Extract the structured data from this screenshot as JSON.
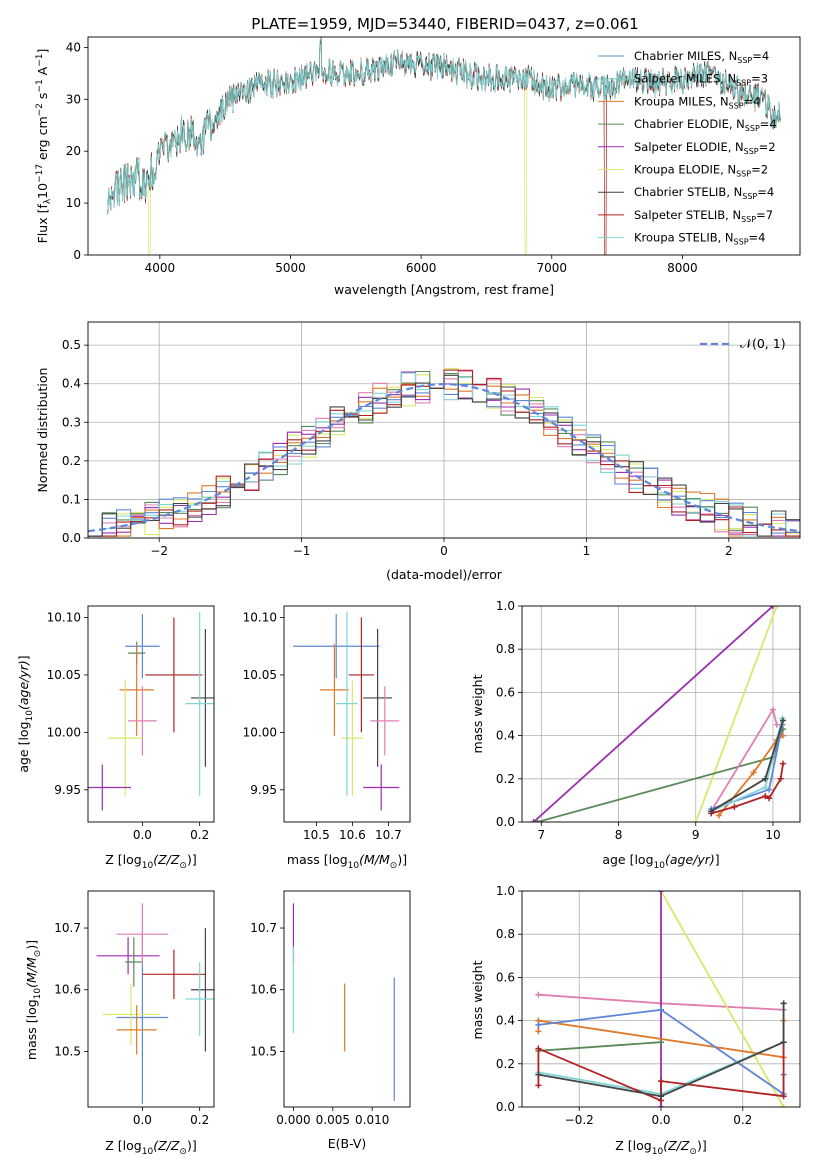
{
  "figure": {
    "title": "PLATE=1959, MJD=53440, FIBERID=0437, z=0.061"
  },
  "colors": {
    "chabrier_miles": "#5e8fc5",
    "salpeter_miles": "#6ec6c0",
    "kroupa_miles": "#e07a2a",
    "chabrier_elodie": "#5a8a5a",
    "salpeter_elodie": "#9b2fb0",
    "kroupa_elodie": "#d8e86a",
    "chabrier_stelib": "#444444",
    "salpeter_stelib": "#b22222",
    "kroupa_stelib": "#7fd6d6",
    "pink": "#e07fb0",
    "blue": "#5f86d8",
    "normal_curve": "#5f86d8"
  },
  "chart_data": [
    {
      "id": "spectrum",
      "type": "line",
      "xlabel": "wavelength [Angstrom, rest frame]",
      "ylabel": "Flux [f",
      "ylabel_parts": {
        "a": "Flux [f",
        "lambda": "λ",
        "b": "10",
        "exp1": "−17",
        "c": " erg cm",
        "exp2": "−2",
        "d": " s",
        "exp3": "−1",
        "e": " A",
        "exp4": "−1",
        "f": "]"
      },
      "xlim": [
        3450,
        8900
      ],
      "ylim": [
        0,
        42
      ],
      "xticks": [
        4000,
        5000,
        6000,
        7000,
        8000
      ],
      "yticks": [
        0,
        10,
        20,
        30,
        40
      ],
      "continuum": {
        "x": [
          3600,
          3700,
          3800,
          3900,
          4000,
          4100,
          4200,
          4300,
          4400,
          4500,
          4600,
          4800,
          5000,
          5200,
          5400,
          5600,
          5800,
          6000,
          6200,
          6400,
          6600,
          6800,
          7000,
          7200,
          7400,
          7600,
          7800,
          8000,
          8200,
          8400,
          8600,
          8700
        ],
        "y": [
          12,
          13,
          15,
          14,
          19,
          21,
          24,
          22,
          25,
          29,
          31,
          33,
          33.5,
          35,
          35,
          35.5,
          37,
          36.5,
          36,
          34.5,
          34,
          34,
          32,
          33,
          32,
          34,
          33,
          34,
          35,
          32,
          30,
          27
        ]
      },
      "legend": [
        {
          "label": "Chabrier MILES, N",
          "sub": "SSP",
          "val": "=4",
          "color": "chabrier_miles"
        },
        {
          "label": "Salpeter MILES, N",
          "sub": "SSP",
          "val": "=3",
          "color": "salpeter_miles"
        },
        {
          "label": "Kroupa MILES, N",
          "sub": "SSP",
          "val": "=4",
          "color": "kroupa_miles"
        },
        {
          "label": "Chabrier ELODIE, N",
          "sub": "SSP",
          "val": "=4",
          "color": "chabrier_elodie"
        },
        {
          "label": "Salpeter ELODIE, N",
          "sub": "SSP",
          "val": "=2",
          "color": "salpeter_elodie"
        },
        {
          "label": "Kroupa ELODIE, N",
          "sub": "SSP",
          "val": "=2",
          "color": "kroupa_elodie"
        },
        {
          "label": "Chabrier STELIB, N",
          "sub": "SSP",
          "val": "=4",
          "color": "chabrier_stelib"
        },
        {
          "label": "Salpeter STELIB, N",
          "sub": "SSP",
          "val": "=7",
          "color": "salpeter_stelib"
        },
        {
          "label": "Kroupa STELIB, N",
          "sub": "SSP",
          "val": "=4",
          "color": "kroupa_stelib"
        }
      ]
    },
    {
      "id": "residuals",
      "type": "bar",
      "xlabel": "(data-model)/error",
      "ylabel": "Normed distribution",
      "xlim": [
        -2.5,
        2.5
      ],
      "ylim": [
        0,
        0.56
      ],
      "xticks": [
        -2,
        -1,
        0,
        1,
        2
      ],
      "yticks": [
        0.0,
        0.1,
        0.2,
        0.3,
        0.4,
        0.5
      ],
      "grid": true,
      "legend": [
        {
          "label": "𝒩(0, 1)",
          "style": "dashed",
          "color": "normal_curve"
        }
      ],
      "bin_width": 0.1
    },
    {
      "id": "age_vs_Z",
      "type": "scatter",
      "xlabel": "Z [log",
      "ylabel": "age  [log",
      "xlim": [
        -0.19,
        0.25
      ],
      "ylim": [
        9.922,
        10.11
      ],
      "xticks": [
        0.0,
        0.2
      ],
      "yticks": [
        9.95,
        10.0,
        10.05,
        10.1
      ],
      "points": [
        {
          "x": 0.0,
          "y": 10.075,
          "xerr": 0.06,
          "yerr": 0.028,
          "color": "blue"
        },
        {
          "x": -0.02,
          "y": 10.069,
          "xerr": 0.03,
          "yerr": 0.01,
          "color": "chabrier_elodie"
        },
        {
          "x": -0.02,
          "y": 10.037,
          "xerr": 0.06,
          "yerr": 0.04,
          "color": "kroupa_miles"
        },
        {
          "x": 0.0,
          "y": 10.01,
          "xerr": 0.05,
          "yerr": 0.03,
          "color": "pink"
        },
        {
          "x": -0.06,
          "y": 9.995,
          "xerr": 0.06,
          "yerr": 0.05,
          "color": "kroupa_elodie"
        },
        {
          "x": -0.14,
          "y": 9.952,
          "xerr": 0.1,
          "yerr": 0.02,
          "color": "salpeter_elodie"
        },
        {
          "x": 0.11,
          "y": 10.05,
          "xerr": 0.1,
          "yerr": 0.05,
          "color": "salpeter_stelib"
        },
        {
          "x": 0.22,
          "y": 10.03,
          "xerr": 0.05,
          "yerr": 0.06,
          "color": "chabrier_stelib"
        },
        {
          "x": 0.2,
          "y": 10.025,
          "xerr": 0.05,
          "yerr": 0.08,
          "color": "kroupa_stelib"
        }
      ]
    },
    {
      "id": "age_vs_mass",
      "type": "scatter",
      "xlabel": "mass [log",
      "xlim": [
        10.41,
        10.76
      ],
      "ylim": [
        9.922,
        10.11
      ],
      "xticks": [
        10.5,
        10.6,
        10.7
      ],
      "yticks": [
        9.95,
        10.0,
        10.05,
        10.1
      ],
      "points": [
        {
          "x": 10.555,
          "y": 10.075,
          "xerr": 0.12,
          "yerr": 0.028,
          "color": "blue"
        },
        {
          "x": 10.55,
          "y": 10.037,
          "xerr": 0.04,
          "yerr": 0.04,
          "color": "kroupa_miles"
        },
        {
          "x": 10.6,
          "y": 9.995,
          "xerr": 0.03,
          "yerr": 0.05,
          "color": "kroupa_elodie"
        },
        {
          "x": 10.625,
          "y": 10.05,
          "xerr": 0.035,
          "yerr": 0.05,
          "color": "salpeter_stelib"
        },
        {
          "x": 10.67,
          "y": 10.03,
          "xerr": 0.04,
          "yerr": 0.06,
          "color": "chabrier_stelib"
        },
        {
          "x": 10.69,
          "y": 10.01,
          "xerr": 0.04,
          "yerr": 0.03,
          "color": "pink"
        },
        {
          "x": 10.68,
          "y": 9.952,
          "xerr": 0.05,
          "yerr": 0.02,
          "color": "salpeter_elodie"
        },
        {
          "x": 10.585,
          "y": 10.025,
          "xerr": 0.03,
          "yerr": 0.08,
          "color": "kroupa_stelib"
        }
      ]
    },
    {
      "id": "weight_vs_age",
      "type": "line",
      "xlabel": "age  [log",
      "ylabel": "mass weight",
      "xlim": [
        6.75,
        10.35
      ],
      "ylim": [
        0,
        1.0
      ],
      "xticks": [
        7,
        8,
        9,
        10
      ],
      "yticks": [
        0.0,
        0.2,
        0.4,
        0.6,
        0.8,
        1.0
      ],
      "grid": true,
      "series": [
        {
          "color": "salpeter_elodie",
          "x": [
            6.9,
            10.0
          ],
          "y": [
            0.0,
            1.0
          ]
        },
        {
          "color": "kroupa_elodie",
          "x": [
            9.0,
            10.05
          ],
          "y": [
            0.0,
            1.0
          ]
        },
        {
          "color": "chabrier_elodie",
          "x": [
            6.95,
            10.0,
            10.13
          ],
          "y": [
            0.0,
            0.3,
            0.43
          ]
        },
        {
          "color": "pink",
          "x": [
            9.2,
            10.0,
            10.05
          ],
          "y": [
            0.05,
            0.52,
            0.45
          ]
        },
        {
          "color": "kroupa_miles",
          "x": [
            9.3,
            9.75,
            10.05,
            10.13
          ],
          "y": [
            0.03,
            0.23,
            0.38,
            0.4
          ]
        },
        {
          "color": "blue",
          "x": [
            9.2,
            9.95,
            10.12
          ],
          "y": [
            0.06,
            0.15,
            0.45
          ]
        },
        {
          "color": "kroupa_stelib",
          "x": [
            9.2,
            9.9,
            10.12
          ],
          "y": [
            0.05,
            0.16,
            0.48
          ]
        },
        {
          "color": "salpeter_stelib",
          "x": [
            9.2,
            9.5,
            9.9,
            9.95,
            10.1,
            10.13
          ],
          "y": [
            0.04,
            0.07,
            0.12,
            0.11,
            0.2,
            0.27
          ]
        },
        {
          "color": "chabrier_stelib",
          "x": [
            9.2,
            9.9,
            10.13
          ],
          "y": [
            0.05,
            0.2,
            0.47
          ]
        }
      ]
    },
    {
      "id": "mass_vs_Z",
      "type": "scatter",
      "xlabel": "Z [log",
      "ylabel": "mass [log",
      "xlim": [
        -0.19,
        0.25
      ],
      "ylim": [
        10.41,
        10.76
      ],
      "xticks": [
        0.0,
        0.2
      ],
      "yticks": [
        10.5,
        10.6,
        10.7
      ],
      "points": [
        {
          "x": -0.05,
          "y": 10.655,
          "xerr": 0.11,
          "yerr": 0.03,
          "color": "salpeter_elodie"
        },
        {
          "x": -0.03,
          "y": 10.645,
          "xerr": 0.03,
          "yerr": 0.04,
          "color": "chabrier_elodie"
        },
        {
          "x": 0.0,
          "y": 10.555,
          "xerr": 0.09,
          "yerr": 0.14,
          "color": "blue"
        },
        {
          "x": -0.04,
          "y": 10.56,
          "xerr": 0.1,
          "yerr": 0.05,
          "color": "kroupa_elodie"
        },
        {
          "x": -0.02,
          "y": 10.535,
          "xerr": 0.07,
          "yerr": 0.04,
          "color": "kroupa_miles"
        },
        {
          "x": 0.0,
          "y": 10.69,
          "xerr": 0.09,
          "yerr": 0.05,
          "color": "pink"
        },
        {
          "x": 0.11,
          "y": 10.625,
          "xerr": 0.11,
          "yerr": 0.04,
          "color": "salpeter_stelib"
        },
        {
          "x": 0.22,
          "y": 10.6,
          "xerr": 0.05,
          "yerr": 0.1,
          "color": "chabrier_stelib"
        },
        {
          "x": 0.2,
          "y": 10.585,
          "xerr": 0.05,
          "yerr": 0.06,
          "color": "kroupa_stelib"
        }
      ]
    },
    {
      "id": "mass_vs_ebv",
      "type": "scatter",
      "xlabel": "E(B-V)",
      "xlim": [
        -0.0012,
        0.0148
      ],
      "ylim": [
        10.41,
        10.76
      ],
      "xticks": [
        0.0,
        0.005,
        0.01
      ],
      "xtick_labels": [
        "0.000",
        "0.005",
        "0.010"
      ],
      "yticks": [
        10.5,
        10.6,
        10.7
      ],
      "points": [
        {
          "x": 0.0,
          "y": 10.69,
          "xerr": 0,
          "yerr": 0.05,
          "color": "salpeter_elodie"
        },
        {
          "x": 0.0,
          "y": 10.6,
          "xerr": 0,
          "yerr": 0.07,
          "color": "kroupa_stelib"
        },
        {
          "x": 0.0065,
          "y": 10.555,
          "xerr": 0,
          "yerr": 0.055,
          "color": "kroupa_miles"
        },
        {
          "x": 0.0128,
          "y": 10.52,
          "xerr": 0,
          "yerr": 0.1,
          "color": "blue"
        }
      ]
    },
    {
      "id": "weight_vs_Z",
      "type": "line",
      "xlabel": "Z [log",
      "ylabel": "mass weight",
      "xlim": [
        -0.34,
        0.34
      ],
      "ylim": [
        0,
        1.0
      ],
      "xticks": [
        -0.2,
        0.0,
        0.2
      ],
      "yticks": [
        0.0,
        0.2,
        0.4,
        0.6,
        0.8,
        1.0
      ],
      "grid": true,
      "series": [
        {
          "color": "pink",
          "x": [
            -0.3,
            0.0,
            0.3
          ],
          "y": [
            0.52,
            0.48,
            0.45
          ]
        },
        {
          "color": "kroupa_elodie",
          "x": [
            0.0,
            0.3
          ],
          "y": [
            1.0,
            0.0
          ]
        },
        {
          "color": "salpeter_elodie",
          "x": [
            0.0,
            0.0
          ],
          "y": [
            0.0,
            1.0
          ]
        },
        {
          "color": "kroupa_miles",
          "x": [
            -0.3,
            -0.3,
            0.3,
            0.3
          ],
          "y": [
            0.35,
            0.4,
            0.23,
            0.4
          ]
        },
        {
          "color": "blue",
          "x": [
            -0.3,
            0.0,
            0.3,
            0.3
          ],
          "y": [
            0.38,
            0.45,
            0.06,
            0.15
          ]
        },
        {
          "color": "chabrier_elodie",
          "x": [
            -0.3,
            0.0
          ],
          "y": [
            0.26,
            0.3
          ]
        },
        {
          "color": "kroupa_stelib",
          "x": [
            -0.3,
            0.0,
            0.3,
            0.3
          ],
          "y": [
            0.16,
            0.06,
            0.3,
            0.48
          ]
        },
        {
          "color": "salpeter_stelib",
          "x": [
            -0.3,
            -0.3,
            0.0,
            0.0,
            0.3,
            0.3
          ],
          "y": [
            0.1,
            0.27,
            0.03,
            0.12,
            0.05,
            0.3
          ]
        },
        {
          "color": "chabrier_stelib",
          "x": [
            -0.3,
            0.0,
            0.3,
            0.3
          ],
          "y": [
            0.15,
            0.05,
            0.3,
            0.48
          ]
        }
      ]
    }
  ]
}
